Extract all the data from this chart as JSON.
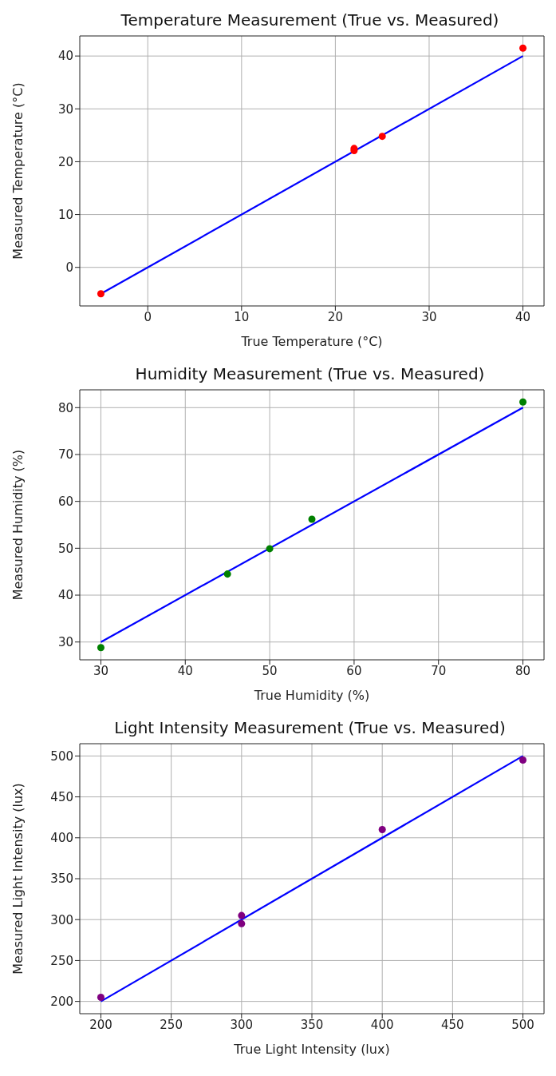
{
  "chart_data": [
    {
      "type": "scatter",
      "title": "Temperature Measurement (True vs. Measured)",
      "xlabel": "True Temperature (°C)",
      "ylabel": "Measured Temperature (°C)",
      "xlim": [
        -7.25,
        42.25
      ],
      "ylim": [
        -7.3,
        43.8
      ],
      "xticks": [
        0,
        10,
        20,
        30,
        40
      ],
      "yticks": [
        0,
        10,
        20,
        30,
        40
      ],
      "grid": true,
      "series": [
        {
          "color": "#ff0000",
          "marker": "circle",
          "x": [
            -5,
            22,
            22,
            25,
            40
          ],
          "values": [
            -5,
            22.5,
            22.1,
            24.8,
            41.5
          ]
        },
        {
          "type": "line",
          "color": "#0000ff",
          "marker": "none",
          "line_style": "solid",
          "x": [
            -5,
            40
          ],
          "values": [
            -5,
            40
          ]
        }
      ]
    },
    {
      "type": "scatter",
      "title": "Humidity Measurement (True vs. Measured)",
      "xlabel": "True Humidity (%)",
      "ylabel": "Measured Humidity (%)",
      "xlim": [
        27.5,
        82.5
      ],
      "ylim": [
        26.2,
        83.8
      ],
      "xticks": [
        30,
        40,
        50,
        60,
        70,
        80
      ],
      "yticks": [
        30,
        40,
        50,
        60,
        70,
        80
      ],
      "grid": true,
      "series": [
        {
          "color": "#008000",
          "marker": "circle",
          "x": [
            30,
            45,
            50,
            55,
            80
          ],
          "values": [
            28.8,
            44.5,
            49.9,
            56.2,
            81.2
          ]
        },
        {
          "type": "line",
          "color": "#0000ff",
          "marker": "none",
          "line_style": "solid",
          "x": [
            30,
            80
          ],
          "values": [
            30,
            80
          ]
        }
      ]
    },
    {
      "type": "scatter",
      "title": "Light Intensity Measurement (True vs. Measured)",
      "xlabel": "True Light Intensity (lux)",
      "ylabel": "Measured Light Intensity (lux)",
      "xlim": [
        185,
        515
      ],
      "ylim": [
        185,
        515
      ],
      "xticks": [
        200,
        250,
        300,
        350,
        400,
        450,
        500
      ],
      "yticks": [
        200,
        250,
        300,
        350,
        400,
        450,
        500
      ],
      "grid": true,
      "series": [
        {
          "color": "#800080",
          "marker": "circle",
          "x": [
            200,
            300,
            300,
            400,
            500
          ],
          "values": [
            205,
            305,
            295,
            410,
            495
          ]
        },
        {
          "type": "line",
          "color": "#0000ff",
          "marker": "none",
          "line_style": "solid",
          "x": [
            200,
            500
          ],
          "values": [
            200,
            500
          ]
        }
      ]
    }
  ]
}
